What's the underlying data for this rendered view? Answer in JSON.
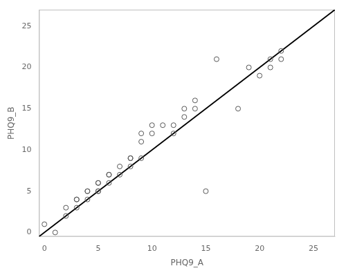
{
  "chart_data": {
    "type": "scatter",
    "xlabel": "PHQ9_A",
    "ylabel": "PHQ9_B",
    "series": [
      {
        "type": "line",
        "x": [
          -0.5,
          27
        ],
        "values": [
          -0.5,
          27
        ],
        "color": "#000000",
        "line_style": "solid"
      },
      {
        "type": "scatter",
        "x": [
          0,
          1,
          2,
          2,
          3,
          3,
          3,
          4,
          4,
          4,
          5,
          5,
          5,
          5,
          6,
          6,
          6,
          7,
          7,
          8,
          8,
          8,
          9,
          9,
          9,
          10,
          10,
          11,
          12,
          12,
          13,
          13,
          14,
          14,
          15,
          16,
          18,
          19,
          20,
          21,
          21,
          22,
          22
        ],
        "values": [
          1,
          0,
          2,
          3,
          3,
          4,
          4,
          4,
          5,
          5,
          5,
          5,
          6,
          6,
          6,
          7,
          7,
          7,
          8,
          8,
          9,
          9,
          9,
          11,
          12,
          12,
          13,
          13,
          12,
          13,
          14,
          15,
          15,
          16,
          5,
          21,
          15,
          20,
          19,
          21,
          20,
          21,
          22
        ],
        "color": "#555555",
        "marker": "open circle"
      }
    ],
    "xlim": [
      -0.5,
      27
    ],
    "ylim": [
      -0.5,
      27
    ],
    "xticks": [
      0,
      5,
      10,
      15,
      20,
      25
    ],
    "yticks": [
      0,
      5,
      10,
      15,
      20,
      25
    ],
    "grid": false
  }
}
